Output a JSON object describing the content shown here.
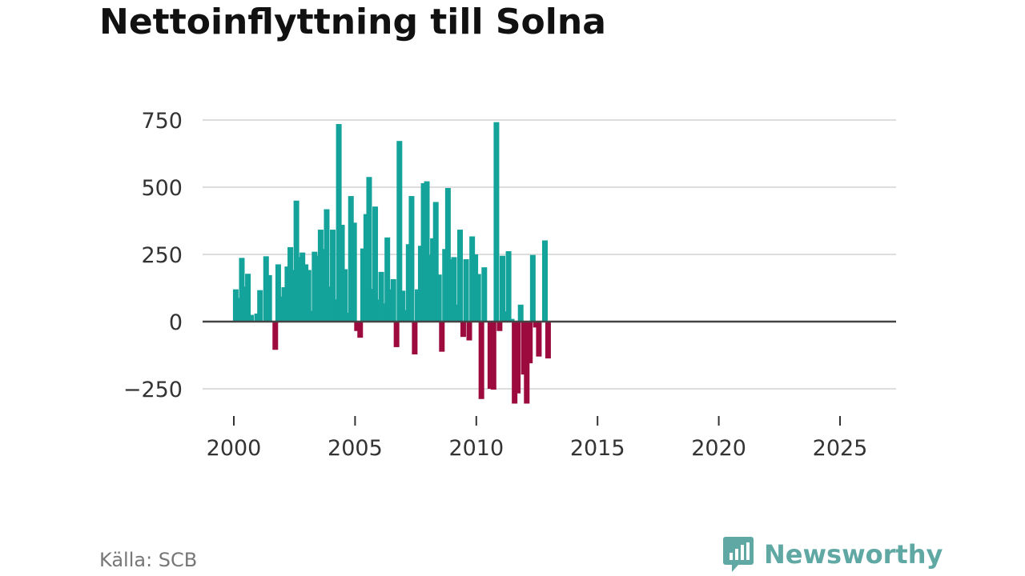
{
  "title": "Nettoinflyttning till Solna",
  "source": "Källa: SCB",
  "brand": {
    "name": "Newsworthy",
    "icon": "newsworthy-logo-icon"
  },
  "colors": {
    "positive": "#13a39a",
    "negative": "#9c0a3e",
    "grid": "#dddddd",
    "zero": "#444444",
    "brand": "#5fa8a3"
  },
  "chart_data": {
    "type": "bar",
    "title": "Nettoinflyttning till Solna",
    "xlabel": "",
    "ylabel": "",
    "ylim": [
      -300,
      780
    ],
    "yticks": [
      -250,
      0,
      250,
      500,
      750
    ],
    "ytick_labels": [
      "−250",
      "0",
      "250",
      "500",
      "750"
    ],
    "xlim": [
      1999.75,
      2026.8
    ],
    "xticks": [
      2000,
      2005,
      2010,
      2015,
      2020,
      2025
    ],
    "xtick_labels": [
      "2000",
      "2005",
      "2010",
      "2015",
      "2020",
      "2025"
    ],
    "period": "monthly",
    "x": [
      2000.125,
      2000.292,
      2000.375,
      2000.458,
      2000.542,
      2000.625,
      2000.708,
      2000.875,
      2001.042,
      2001.125,
      2001.292,
      2001.375,
      2001.458,
      2001.625,
      2001.708,
      2001.792,
      2001.875,
      2002.042,
      2002.125,
      2002.292,
      2002.375,
      2002.458,
      2002.542,
      2002.625,
      2002.708,
      2002.792,
      2002.875,
      2003.042,
      2003.125,
      2003.292,
      2003.375,
      2003.458,
      2003.542,
      2003.625,
      2003.708,
      2003.792,
      2003.875,
      2004.042,
      2004.125,
      2004.292,
      2004.375,
      2004.458,
      2004.542,
      2004.625,
      2004.708,
      2004.792,
      2004.875,
      2005.042,
      2005.125,
      2005.292,
      2005.375,
      2005.458,
      2005.542,
      2005.625,
      2005.708,
      2005.792,
      2005.875,
      2006.042,
      2006.125,
      2006.292,
      2006.375,
      2006.458,
      2006.542,
      2006.625,
      2006.708,
      2006.792,
      2006.875,
      2007.042,
      2007.125,
      2007.292,
      2007.375,
      2007.458,
      2007.542,
      2007.625,
      2007.708,
      2007.792,
      2007.875,
      2008.042,
      2008.125,
      2008.292,
      2008.375,
      2008.458,
      2008.542,
      2008.625,
      2008.708,
      2008.792,
      2008.875,
      2009.042,
      2009.125,
      2009.292,
      2009.375,
      2009.458,
      2009.542,
      2009.625,
      2009.708,
      2009.792,
      2009.875,
      2010.042,
      2010.125,
      2010.292,
      2010.375,
      2010.458,
      2010.542,
      2010.625,
      2010.708,
      2010.792,
      2010.875,
      2011.042,
      2011.125,
      2011.292,
      2011.375,
      2011.458,
      2011.542,
      2011.625,
      2011.708,
      2011.792,
      2011.875,
      2012.042,
      2012.125,
      2012.292,
      2012.375,
      2012.458,
      2012.542,
      2012.625,
      2012.708,
      2012.792,
      2012.875,
      2013.042,
      2013.125,
      2013.292,
      2013.375,
      2013.458,
      2013.542,
      2013.625,
      2013.708,
      2013.792,
      2013.875,
      2014.042,
      2014.125,
      2014.292,
      2014.375,
      2014.458,
      2014.542,
      2014.625,
      2014.708,
      2014.792,
      2014.875,
      2015.042,
      2015.125,
      2015.292,
      2015.375,
      2015.458,
      2015.542,
      2015.625,
      2015.708,
      2015.792,
      2015.875,
      2016.042,
      2016.125,
      2016.292,
      2016.375,
      2016.458,
      2016.542,
      2016.625,
      2016.708,
      2016.792,
      2016.875,
      2017.042,
      2017.125,
      2017.292,
      2017.375,
      2017.458,
      2017.542,
      2017.625,
      2017.708,
      2017.792,
      2017.875,
      2018.042,
      2018.125,
      2018.292,
      2018.375,
      2018.458,
      2018.542,
      2018.625,
      2018.708,
      2018.792,
      2018.875,
      2019.042,
      2019.125,
      2019.292,
      2019.375,
      2019.458,
      2019.542,
      2019.625,
      2019.708,
      2019.792,
      2019.875,
      2020.042,
      2020.125,
      2020.292,
      2020.375,
      2020.458,
      2020.542,
      2020.625,
      2020.708,
      2020.792,
      2020.875,
      2021.042,
      2021.125,
      2021.292,
      2021.375,
      2021.458,
      2021.542,
      2021.625,
      2021.708,
      2021.792,
      2021.875,
      2022.042,
      2022.125,
      2022.292,
      2022.375,
      2022.458,
      2022.542,
      2022.625,
      2022.708,
      2022.792,
      2022.875,
      2023.042,
      2023.125,
      2023.292,
      2023.375,
      2023.458,
      2023.542,
      2023.625,
      2023.708,
      2023.792,
      2023.875,
      2024.042,
      2024.125,
      2024.292,
      2024.375,
      2024.458,
      2024.542,
      2024.625,
      2024.708,
      2024.792,
      2024.875,
      2025.042,
      2025.125,
      2025.292,
      2025.375,
      2025.458,
      2025.542,
      2025.625,
      2025.708,
      2025.792,
      2025.875
    ],
    "values_note": "bars sampled at the visible bar positions",
    "bars": [
      {
        "x": 2000.08,
        "v": 120
      },
      {
        "x": 2000.21,
        "v": 88
      },
      {
        "x": 2000.33,
        "v": 237
      },
      {
        "x": 2000.46,
        "v": 130
      },
      {
        "x": 2000.58,
        "v": 178
      },
      {
        "x": 2000.71,
        "v": 25
      },
      {
        "x": 2000.96,
        "v": 30
      },
      {
        "x": 2001.08,
        "v": 117
      },
      {
        "x": 2001.33,
        "v": 243
      },
      {
        "x": 2001.46,
        "v": 173
      },
      {
        "x": 2001.71,
        "v": -105
      },
      {
        "x": 2001.83,
        "v": 213
      },
      {
        "x": 2001.96,
        "v": 93
      },
      {
        "x": 2002.08,
        "v": 128
      },
      {
        "x": 2002.21,
        "v": 205
      },
      {
        "x": 2002.33,
        "v": 277
      },
      {
        "x": 2002.46,
        "v": 192
      },
      {
        "x": 2002.58,
        "v": 450
      },
      {
        "x": 2002.71,
        "v": 240
      },
      {
        "x": 2002.83,
        "v": 257
      },
      {
        "x": 2002.96,
        "v": 213
      },
      {
        "x": 2003.08,
        "v": 192
      },
      {
        "x": 2003.21,
        "v": 40
      },
      {
        "x": 2003.33,
        "v": 260
      },
      {
        "x": 2003.46,
        "v": 245
      },
      {
        "x": 2003.58,
        "v": 342
      },
      {
        "x": 2003.71,
        "v": 270
      },
      {
        "x": 2003.83,
        "v": 418
      },
      {
        "x": 2003.96,
        "v": 130
      },
      {
        "x": 2004.08,
        "v": 342
      },
      {
        "x": 2004.21,
        "v": 83
      },
      {
        "x": 2004.33,
        "v": 735
      },
      {
        "x": 2004.46,
        "v": 360
      },
      {
        "x": 2004.58,
        "v": 195
      },
      {
        "x": 2004.71,
        "v": 33
      },
      {
        "x": 2004.83,
        "v": 467
      },
      {
        "x": 2004.96,
        "v": 368
      },
      {
        "x": 2005.08,
        "v": -35
      },
      {
        "x": 2005.21,
        "v": -60
      },
      {
        "x": 2005.33,
        "v": 272
      },
      {
        "x": 2005.46,
        "v": 400
      },
      {
        "x": 2005.58,
        "v": 538
      },
      {
        "x": 2005.71,
        "v": 122
      },
      {
        "x": 2005.83,
        "v": 428
      },
      {
        "x": 2005.96,
        "v": 82
      },
      {
        "x": 2006.08,
        "v": 185
      },
      {
        "x": 2006.21,
        "v": 68
      },
      {
        "x": 2006.33,
        "v": 313
      },
      {
        "x": 2006.46,
        "v": 120
      },
      {
        "x": 2006.58,
        "v": 158
      },
      {
        "x": 2006.71,
        "v": -95
      },
      {
        "x": 2006.83,
        "v": 672
      },
      {
        "x": 2006.96,
        "v": 115
      },
      {
        "x": 2007.08,
        "v": 43
      },
      {
        "x": 2007.21,
        "v": 288
      },
      {
        "x": 2007.33,
        "v": 467
      },
      {
        "x": 2007.46,
        "v": -122
      },
      {
        "x": 2007.58,
        "v": 120
      },
      {
        "x": 2007.71,
        "v": 282
      },
      {
        "x": 2007.83,
        "v": 515
      },
      {
        "x": 2007.96,
        "v": 522
      },
      {
        "x": 2008.08,
        "v": 248
      },
      {
        "x": 2008.21,
        "v": 310
      },
      {
        "x": 2008.33,
        "v": 445
      },
      {
        "x": 2008.46,
        "v": 175
      },
      {
        "x": 2008.58,
        "v": -112
      },
      {
        "x": 2008.71,
        "v": 270
      },
      {
        "x": 2008.83,
        "v": 497
      },
      {
        "x": 2008.96,
        "v": 232
      },
      {
        "x": 2009.08,
        "v": 240
      },
      {
        "x": 2009.21,
        "v": 63
      },
      {
        "x": 2009.33,
        "v": 342
      },
      {
        "x": 2009.46,
        "v": -57
      },
      {
        "x": 2009.58,
        "v": 232
      },
      {
        "x": 2009.71,
        "v": -70
      },
      {
        "x": 2009.83,
        "v": 317
      },
      {
        "x": 2009.96,
        "v": 250
      },
      {
        "x": 2010.08,
        "v": 177
      },
      {
        "x": 2010.21,
        "v": -288
      },
      {
        "x": 2010.33,
        "v": 202
      },
      {
        "x": 2010.58,
        "v": -250
      },
      {
        "x": 2010.71,
        "v": -253
      },
      {
        "x": 2010.83,
        "v": 742
      },
      {
        "x": 2010.96,
        "v": -35
      },
      {
        "x": 2011.08,
        "v": 245
      },
      {
        "x": 2011.21,
        "v": 38
      },
      {
        "x": 2011.33,
        "v": 262
      },
      {
        "x": 2011.46,
        "v": 10
      },
      {
        "x": 2011.58,
        "v": -305
      },
      {
        "x": 2011.71,
        "v": -267
      },
      {
        "x": 2011.83,
        "v": 63
      },
      {
        "x": 2011.96,
        "v": -197
      },
      {
        "x": 2012.08,
        "v": -305
      },
      {
        "x": 2012.21,
        "v": -155
      },
      {
        "x": 2012.33,
        "v": 248
      },
      {
        "x": 2012.46,
        "v": -22
      },
      {
        "x": 2012.58,
        "v": -130
      },
      {
        "x": 2012.83,
        "v": 302
      },
      {
        "x": 2012.96,
        "v": -137
      }
    ],
    "series": [
      {
        "name": "Nettoinflyttning",
        "x": [
          2000.08,
          2000.21,
          2000.33,
          2000.46,
          2000.58,
          2000.71,
          2000.96,
          2001.08,
          2001.33,
          2001.46,
          2001.71,
          2001.83,
          2001.96,
          2002.08,
          2002.21,
          2002.33,
          2002.46,
          2002.58,
          2002.71,
          2002.83,
          2002.96,
          2003.08,
          2003.21,
          2003.33,
          2003.46,
          2003.58,
          2003.71,
          2003.83,
          2003.96,
          2004.08,
          2004.21,
          2004.33,
          2004.46,
          2004.58,
          2004.71,
          2004.83,
          2004.96,
          2005.08,
          2005.21,
          2005.33,
          2005.46,
          2005.58,
          2005.71,
          2005.83,
          2005.96,
          2006.08,
          2006.21,
          2006.33,
          2006.46,
          2006.58,
          2006.71,
          2006.83,
          2006.96,
          2007.08,
          2007.21,
          2007.33,
          2007.46,
          2007.58,
          2007.71,
          2007.83,
          2007.96,
          2008.08,
          2008.21,
          2008.33,
          2008.46,
          2008.58,
          2008.71,
          2008.83,
          2008.96,
          2009.08,
          2009.21,
          2009.33,
          2009.46,
          2009.58,
          2009.71,
          2009.83,
          2009.96,
          2010.08,
          2010.21,
          2010.33,
          2010.58,
          2010.71,
          2010.83,
          2010.96,
          2011.08,
          2011.21,
          2011.33,
          2011.46,
          2011.58,
          2011.71,
          2011.83,
          2011.96,
          2012.08,
          2012.21,
          2012.33,
          2012.46,
          2012.58,
          2012.83,
          2012.96
        ],
        "values": [
          120,
          88,
          237,
          130,
          178,
          25,
          30,
          117,
          243,
          173,
          -105,
          213,
          93,
          128,
          205,
          277,
          192,
          450,
          240,
          257,
          213,
          192,
          40,
          260,
          245,
          342,
          270,
          418,
          130,
          342,
          83,
          735,
          360,
          195,
          33,
          467,
          368,
          -35,
          -60,
          272,
          400,
          538,
          122,
          428,
          82,
          185,
          68,
          313,
          120,
          158,
          -95,
          672,
          115,
          43,
          288,
          467,
          -122,
          120,
          282,
          515,
          522,
          248,
          310,
          445,
          175,
          -112,
          270,
          497,
          232,
          240,
          63,
          342,
          -57,
          232,
          -70,
          317,
          250,
          177,
          -288,
          202,
          -250,
          -253,
          742,
          -35,
          245,
          38,
          262,
          10,
          -305,
          -267,
          63,
          -197,
          -305,
          -155,
          248,
          -22,
          -130,
          302,
          -137
        ]
      }
    ]
  }
}
